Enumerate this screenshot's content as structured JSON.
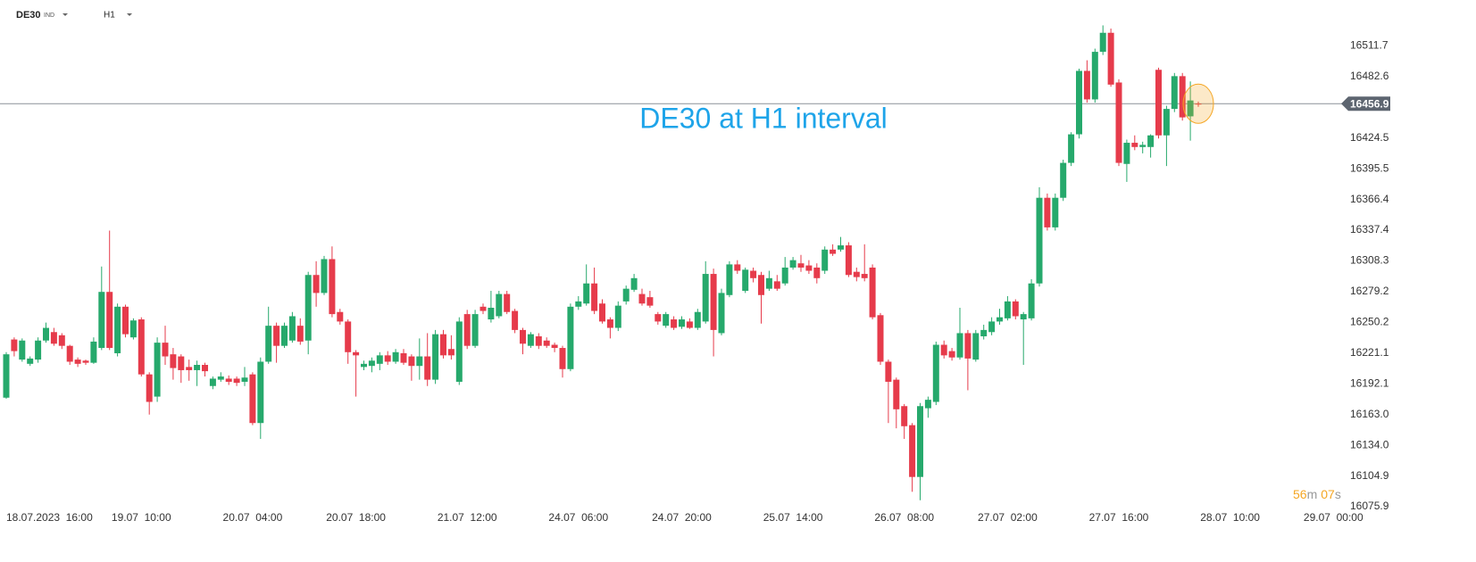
{
  "header": {
    "symbol": "DE30",
    "symbol_type": "IND",
    "interval": "H1"
  },
  "chart_data": {
    "type": "candlestick",
    "annotation": "DE30 at H1 interval",
    "up_color": "#26a96c",
    "down_color": "#e63b4b",
    "current_price": 16456.9,
    "countdown": {
      "minutes": "56",
      "minutes_unit": "m",
      "seconds": "07",
      "seconds_unit": "s"
    },
    "ylim": [
      16070,
      16555
    ],
    "yticks": [
      16075.9,
      16104.9,
      {
        "value": 16134,
        "label": "16134.0"
      },
      {
        "value": 16163,
        "label": "16163.0"
      },
      16192.1,
      16221.1,
      16250.2,
      16279.2,
      16308.3,
      16337.4,
      16366.4,
      16395.5,
      16424.5,
      16482.6,
      16511.7
    ],
    "categories": [
      "18.07.2023  16:00",
      null,
      null,
      null,
      null,
      null,
      null,
      null,
      null,
      null,
      null,
      null,
      null,
      null,
      null,
      null,
      null,
      "19.07  10:00",
      null,
      null,
      null,
      null,
      null,
      null,
      null,
      null,
      null,
      null,
      null,
      null,
      null,
      "20.07  04:00",
      null,
      null,
      null,
      null,
      null,
      null,
      null,
      null,
      null,
      null,
      null,
      null,
      "20.07  18:00",
      null,
      null,
      null,
      null,
      null,
      null,
      null,
      null,
      null,
      null,
      null,
      null,
      null,
      "21.07  12:00",
      null,
      null,
      null,
      null,
      null,
      null,
      null,
      null,
      null,
      null,
      null,
      null,
      null,
      "24.07  06:00",
      null,
      null,
      null,
      null,
      null,
      null,
      null,
      null,
      null,
      null,
      null,
      null,
      "24.07  20:00",
      null,
      null,
      null,
      null,
      null,
      null,
      null,
      null,
      null,
      null,
      null,
      null,
      null,
      "25.07  14:00",
      null,
      null,
      null,
      null,
      null,
      null,
      null,
      null,
      null,
      null,
      null,
      null,
      null,
      "26.07  08:00",
      null,
      null,
      null,
      null,
      null,
      null,
      null,
      null,
      null,
      null,
      null,
      null,
      "27.07  02:00",
      null,
      null,
      null,
      null,
      null,
      null,
      null,
      null,
      null,
      null,
      null,
      null,
      null,
      "27.07  16:00",
      null,
      null,
      null,
      null,
      null,
      null,
      null,
      null,
      null,
      null,
      null,
      null,
      null,
      "28.07  10:00",
      null,
      null,
      null,
      null,
      null,
      null,
      null,
      null,
      null,
      null,
      null,
      null,
      "29.07  00:00"
    ],
    "open": [
      16179,
      16234,
      16215,
      16211,
      16215,
      16233,
      16241,
      16238,
      16228,
      16215,
      16214,
      16212,
      16226,
      16279,
      16221,
      16265,
      16236,
      16253,
      16201,
      16180,
      16231,
      16220,
      16218,
      16208,
      16205,
      16210,
      16190,
      16196,
      16197,
      16197,
      16194,
      16201,
      16155,
      16213,
      16247,
      16228,
      16233,
      16247,
      16233,
      16295,
      16278,
      16310,
      16260,
      16251,
      16222,
      16208,
      16209,
      16211,
      16219,
      16213,
      16221,
      16218,
      16209,
      16218,
      16196,
      16239,
      16225,
      16194,
      16258,
      16228,
      16265,
      16253,
      16256,
      16277,
      16261,
      16243,
      16228,
      16237,
      16233,
      16229,
      16226,
      16206,
      16265,
      16268,
      16287,
      16268,
      16253,
      16245,
      16270,
      16281,
      16277,
      16274,
      16258,
      16247,
      16253,
      16246,
      16251,
      16245,
      16251,
      16296,
      16240,
      16276,
      16305,
      16280,
      16299,
      16295,
      16282,
      16289,
      16287,
      16302,
      16306,
      16304,
      16302,
      16299,
      16319,
      16319,
      16323,
      16298,
      16296,
      16302,
      16257,
      16213,
      16196,
      16171,
      16153,
      16104,
      16169,
      16175,
      16229,
      16223,
      16217,
      16240,
      16215,
      16237,
      16241,
      16251,
      16254,
      16270,
      16253,
      16254,
      16287,
      16368,
      16340,
      16368,
      16401,
      16428,
      16488,
      16461,
      16506,
      16524,
      16477,
      16400,
      16420,
      16416,
      16416,
      16489,
      16427,
      16452,
      16483,
      16445,
      16457,
      null,
      null,
      null,
      null,
      null,
      null,
      null,
      null,
      null,
      null,
      null,
      null,
      null,
      null,
      null,
      null,
      null
    ],
    "high": [
      16222,
      16236,
      16235,
      16218,
      16236,
      16250,
      16245,
      16240,
      16229,
      16217,
      16215,
      16236,
      16303,
      16337,
      16268,
      16267,
      16254,
      16255,
      16203,
      16236,
      16247,
      16226,
      16220,
      16215,
      16214,
      16212,
      16199,
      16203,
      16200,
      16199,
      16208,
      16203,
      16217,
      16265,
      16250,
      16250,
      16260,
      16254,
      16298,
      16308,
      16313,
      16322,
      16263,
      16253,
      16224,
      16214,
      16217,
      16222,
      16223,
      16225,
      16225,
      16220,
      16235,
      16240,
      16243,
      16243,
      16238,
      16255,
      16262,
      16262,
      16268,
      16280,
      16280,
      16280,
      16263,
      16245,
      16241,
      16240,
      16236,
      16231,
      16228,
      16268,
      16275,
      16305,
      16302,
      16272,
      16255,
      16270,
      16285,
      16296,
      16282,
      16280,
      16260,
      16260,
      16256,
      16256,
      16254,
      16263,
      16308,
      16301,
      16282,
      16308,
      16309,
      16302,
      16302,
      16298,
      16299,
      16295,
      16312,
      16312,
      16314,
      16309,
      16306,
      16322,
      16324,
      16331,
      16326,
      16302,
      16324,
      16305,
      16259,
      16215,
      16198,
      16173,
      16155,
      16174,
      16180,
      16232,
      16233,
      16226,
      16264,
      16243,
      16243,
      16248,
      16255,
      16263,
      16275,
      16272,
      16260,
      16291,
      16378,
      16372,
      16372,
      16404,
      16430,
      16490,
      16498,
      16509,
      16531,
      16528,
      16480,
      16423,
      16427,
      16421,
      16428,
      16491,
      16455,
      16486,
      16486,
      16478,
      16459,
      null,
      null,
      null,
      null,
      null,
      null,
      null,
      null,
      null,
      null,
      null,
      null,
      null,
      null,
      null,
      null,
      null
    ],
    "low": [
      16178,
      16218,
      16213,
      16209,
      16212,
      16231,
      16228,
      16225,
      16210,
      16208,
      16210,
      16211,
      16224,
      16224,
      16218,
      16236,
      16234,
      16199,
      16163,
      16175,
      16210,
      16196,
      16193,
      16195,
      16190,
      16199,
      16187,
      16194,
      16191,
      16190,
      16190,
      16153,
      16140,
      16211,
      16212,
      16226,
      16231,
      16229,
      16220,
      16265,
      16276,
      16255,
      16248,
      16211,
      16180,
      16205,
      16203,
      16205,
      16210,
      16211,
      16210,
      16195,
      16196,
      16190,
      16192,
      16216,
      16215,
      16191,
      16225,
      16226,
      16258,
      16250,
      16254,
      16258,
      16240,
      16220,
      16226,
      16225,
      16226,
      16222,
      16198,
      16204,
      16262,
      16266,
      16258,
      16249,
      16235,
      16242,
      16267,
      16279,
      16266,
      16264,
      16248,
      16245,
      16243,
      16244,
      16244,
      16243,
      16249,
      16218,
      16238,
      16274,
      16296,
      16278,
      16288,
      16249,
      16280,
      16280,
      16285,
      16300,
      16298,
      16296,
      16287,
      16296,
      16313,
      16317,
      16293,
      16289,
      16289,
      16253,
      16210,
      16155,
      16150,
      16140,
      16090,
      16082,
      16160,
      16172,
      16216,
      16214,
      16215,
      16186,
      16213,
      16234,
      16238,
      16248,
      16252,
      16253,
      16210,
      16252,
      16284,
      16337,
      16337,
      16365,
      16398,
      16424,
      16458,
      16458,
      16503,
      16473,
      16398,
      16383,
      16413,
      16410,
      16406,
      16424,
      16398,
      16449,
      16441,
      16422,
      16454,
      null,
      null,
      null,
      null,
      null,
      null,
      null,
      null,
      null,
      null,
      null,
      null,
      null,
      null,
      null,
      null,
      null
    ],
    "close": [
      16220,
      16223,
      16233,
      16216,
      16233,
      16245,
      16230,
      16228,
      16213,
      16211,
      16212,
      16232,
      16279,
      16226,
      16265,
      16239,
      16252,
      16201,
      16175,
      16231,
      16218,
      16207,
      16205,
      16205,
      16210,
      16204,
      16197,
      16199,
      16194,
      16193,
      16198,
      16155,
      16213,
      16247,
      16228,
      16247,
      16256,
      16232,
      16295,
      16278,
      16310,
      16258,
      16251,
      16222,
      16219,
      16211,
      16214,
      16219,
      16213,
      16222,
      16212,
      16209,
      16218,
      16196,
      16239,
      16219,
      16219,
      16251,
      16228,
      16258,
      16261,
      16264,
      16277,
      16260,
      16243,
      16230,
      16239,
      16228,
      16228,
      16226,
      16206,
      16265,
      16270,
      16287,
      16261,
      16251,
      16245,
      16266,
      16282,
      16292,
      16268,
      16266,
      16251,
      16258,
      16245,
      16253,
      16245,
      16260,
      16296,
      16243,
      16278,
      16305,
      16299,
      16300,
      16292,
      16276,
      16292,
      16282,
      16302,
      16309,
      16302,
      16299,
      16292,
      16319,
      16315,
      16323,
      16295,
      16293,
      16292,
      16255,
      16213,
      16194,
      16168,
      16152,
      16104,
      16171,
      16177,
      16229,
      16219,
      16217,
      16240,
      16216,
      16240,
      16243,
      16251,
      16255,
      16270,
      16256,
      16258,
      16287,
      16368,
      16340,
      16368,
      16401,
      16428,
      16488,
      16461,
      16506,
      16524,
      16475,
      16401,
      16420,
      16416,
      16418,
      16427,
      16427,
      16452,
      16483,
      16444,
      16460,
      16456.9,
      null,
      null,
      null,
      null,
      null,
      null,
      null,
      null,
      null,
      null,
      null,
      null,
      null,
      null,
      null,
      null,
      null
    ]
  }
}
